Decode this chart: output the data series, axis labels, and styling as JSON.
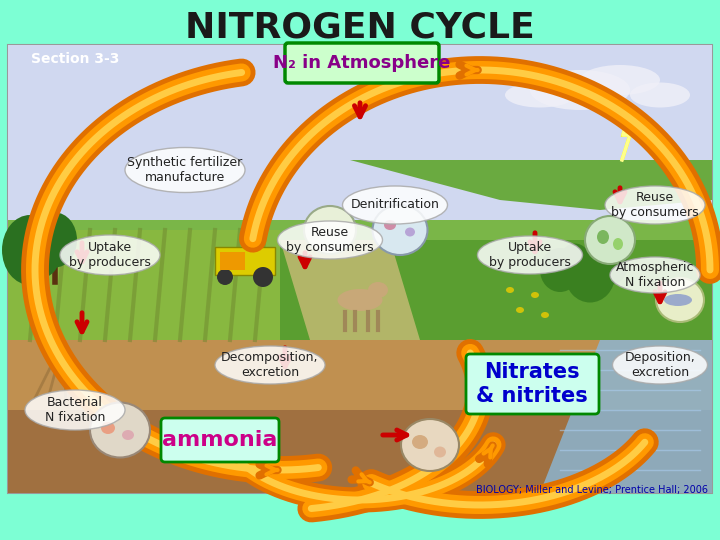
{
  "title": "NITROGEN CYCLE",
  "title_fontsize": 26,
  "title_color": "#1a1a1a",
  "bg_color": "#7dffd4",
  "section_label": "Section 3-3",
  "section_color": "#ffffff",
  "section_fontsize": 10,
  "n2_label": "N₂ in Atmosphere",
  "n2_box_facecolor": "#ccffcc",
  "n2_box_edgecolor": "#008800",
  "n2_fontsize": 13,
  "n2_color": "#880088",
  "nitrates_label": "Nitrates\n& nitrites",
  "nitrates_color": "#0000cc",
  "nitrates_fontsize": 15,
  "nitrates_box_color": "#ccffee",
  "nitrates_box_edge": "#008800",
  "ammonia_label": "ammonia",
  "ammonia_color": "#cc0088",
  "ammonia_fontsize": 16,
  "ammonia_box_color": "#ccffee",
  "ammonia_box_edge": "#008800",
  "label_fontsize": 9,
  "label_color": "#222222",
  "citation": "BIOLOGY; Miller and Levine; Prentice Hall; 2006",
  "citation_color": "#0000aa",
  "citation_fontsize": 7,
  "orange_outer": "#e07000",
  "orange_inner": "#ff9900",
  "orange_highlight": "#ffcc44",
  "red_arrow": "#cc0000",
  "sky_color": "#b8cce4",
  "sky_color2": "#d0d8f0",
  "land_green": "#7ab648",
  "land_green2": "#5a9e30",
  "land_green3": "#3a8020",
  "land_brown": "#c8a060",
  "land_brown2": "#d4b070",
  "water_color": "#8ab8d8",
  "water_color2": "#6090b0",
  "soil_color": "#c09050",
  "crop_color": "#a0a030",
  "path_color": "#d8c080"
}
